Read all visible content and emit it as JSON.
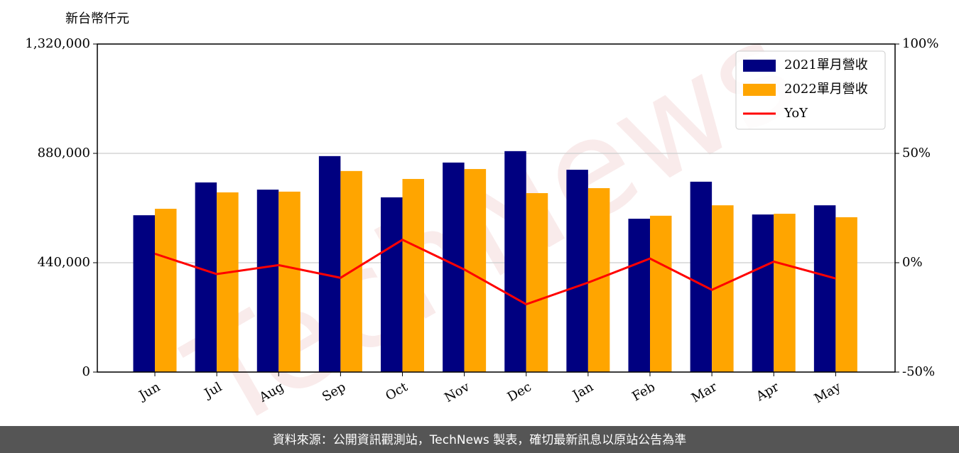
{
  "chart_data": {
    "type": "bar_line",
    "y_label": "新台幣仟元",
    "watermark": "TechNews",
    "source": "資料來源：公開資訊觀測站，TechNews 製表，確切最新訊息以原站公告為準",
    "categories": [
      "Jun",
      "Jul",
      "Aug",
      "Sep",
      "Oct",
      "Nov",
      "Dec",
      "Jan",
      "Feb",
      "Mar",
      "Apr",
      "May"
    ],
    "series": [
      {
        "name": "2021單月營收",
        "color": "#000080",
        "type": "bar",
        "values": [
          631000,
          763000,
          734000,
          869000,
          703000,
          843000,
          889000,
          814000,
          617000,
          766000,
          634000,
          671000
        ]
      },
      {
        "name": "2022單月營收",
        "color": "#ffa500",
        "type": "bar",
        "values": [
          657000,
          723000,
          726000,
          809000,
          777000,
          817000,
          720000,
          740000,
          629000,
          671000,
          637000,
          623000
        ]
      },
      {
        "name": "YoY",
        "color": "#ff0000",
        "type": "line",
        "axis": "y2",
        "values": [
          4.1,
          -5.2,
          -1.1,
          -6.9,
          10.5,
          -3.1,
          -19.0,
          -9.1,
          1.9,
          -12.4,
          0.5,
          -7.2
        ]
      }
    ],
    "ylim": [
      0,
      1320000
    ],
    "yticks": [
      0,
      {
        "value": 440000,
        "label": "440,000"
      },
      {
        "value": 880000,
        "label": "880,000"
      },
      {
        "value": 1320000,
        "label": "1,320,000"
      }
    ],
    "y2lim": [
      -50,
      100
    ],
    "y2ticks": [
      {
        "value": -50,
        "label": "-50%"
      },
      {
        "value": 0,
        "label": "0%"
      },
      {
        "value": 50,
        "label": "50%"
      },
      {
        "value": 100,
        "label": "100%"
      }
    ],
    "grid": true,
    "legend": "upper right"
  }
}
